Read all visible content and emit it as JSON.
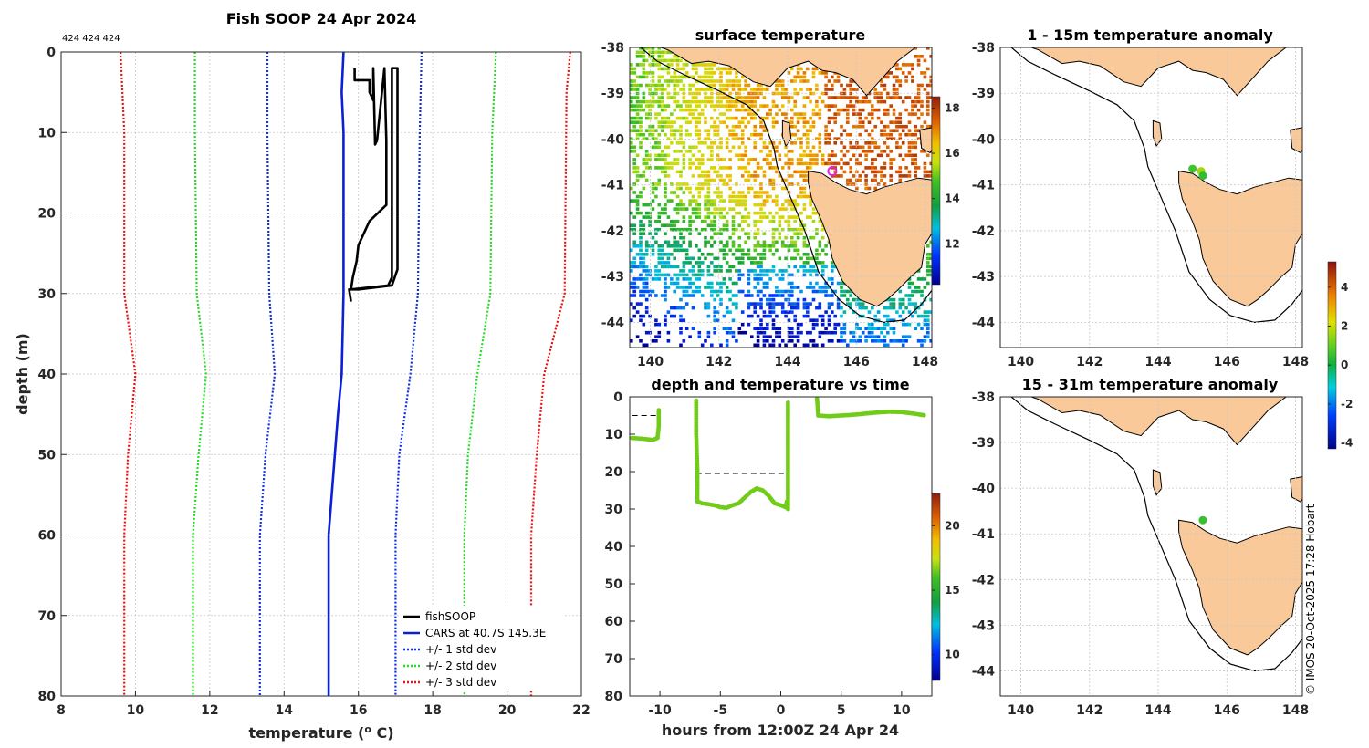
{
  "chart_data": [
    {
      "id": "profile",
      "type": "line",
      "title": "Fish SOOP 24 Apr 2024",
      "subtitle": "424 424 424",
      "xlabel": "temperature (",
      "xlabel_sup": "o",
      "xlabel_tail": " C)",
      "ylabel": "depth (m)",
      "xlim": [
        8,
        22
      ],
      "ylim": [
        0,
        80
      ],
      "y_reversed": true,
      "xticks": [
        8,
        10,
        12,
        14,
        16,
        18,
        20,
        22
      ],
      "yticks": [
        0,
        10,
        20,
        30,
        40,
        50,
        60,
        70,
        80
      ],
      "series": [
        {
          "name": "fishSOOP",
          "color": "#000000",
          "style": "solid",
          "points": [
            [
              15.9,
              2
            ],
            [
              15.9,
              3.5
            ],
            [
              16.3,
              3.5
            ],
            [
              16.3,
              5
            ],
            [
              16.4,
              6
            ],
            [
              16.4,
              2
            ],
            [
              16.45,
              11.5
            ],
            [
              16.5,
              11
            ],
            [
              16.7,
              2
            ],
            [
              16.75,
              11
            ],
            [
              16.75,
              19
            ],
            [
              16.3,
              21
            ],
            [
              16.0,
              24
            ],
            [
              15.95,
              26
            ],
            [
              15.85,
              28
            ],
            [
              15.8,
              29.5
            ],
            [
              16.8,
              29
            ],
            [
              16.9,
              28
            ],
            [
              16.9,
              2
            ],
            [
              17.05,
              2
            ],
            [
              17.05,
              27
            ],
            [
              16.9,
              29
            ],
            [
              16.0,
              29.5
            ],
            [
              15.75,
              29.5
            ],
            [
              15.8,
              31
            ]
          ]
        },
        {
          "name": "CARS at 40.7S 145.3E",
          "color": "#0a1fd6",
          "style": "solid",
          "points": [
            [
              15.6,
              0
            ],
            [
              15.55,
              5
            ],
            [
              15.6,
              10
            ],
            [
              15.6,
              20
            ],
            [
              15.6,
              30
            ],
            [
              15.55,
              40
            ],
            [
              15.45,
              45
            ],
            [
              15.2,
              60
            ],
            [
              15.2,
              70
            ],
            [
              15.2,
              80
            ]
          ]
        },
        {
          "name": "+/- 1 std dev",
          "color": "#1030e0",
          "style": "dotted",
          "points": [
            [
              13.55,
              0
            ],
            [
              13.55,
              10
            ],
            [
              13.6,
              30
            ],
            [
              13.75,
              40
            ],
            [
              13.5,
              50
            ],
            [
              13.35,
              60
            ],
            [
              13.35,
              80
            ]
          ]
        },
        {
          "name": "+/- 1 std dev (upper)",
          "color": "#1030e0",
          "style": "dotted",
          "points": [
            [
              17.7,
              0
            ],
            [
              17.65,
              10
            ],
            [
              17.6,
              30
            ],
            [
              17.4,
              40
            ],
            [
              17.1,
              50
            ],
            [
              17.0,
              60
            ],
            [
              17.0,
              80
            ]
          ]
        },
        {
          "name": "+/- 2 std dev",
          "color": "#22dd22",
          "style": "dotted",
          "points": [
            [
              11.6,
              0
            ],
            [
              11.6,
              10
            ],
            [
              11.65,
              30
            ],
            [
              11.9,
              40
            ],
            [
              11.7,
              50
            ],
            [
              11.55,
              60
            ],
            [
              11.55,
              80
            ]
          ]
        },
        {
          "name": "+/- 2 std dev (upper)",
          "color": "#22dd22",
          "style": "dotted",
          "points": [
            [
              19.7,
              0
            ],
            [
              19.6,
              10
            ],
            [
              19.55,
              30
            ],
            [
              19.2,
              40
            ],
            [
              18.95,
              50
            ],
            [
              18.85,
              60
            ],
            [
              18.85,
              80
            ]
          ]
        },
        {
          "name": "+/- 3 std dev",
          "color": "#ee1111",
          "style": "dotted",
          "points": [
            [
              9.6,
              0
            ],
            [
              9.7,
              10
            ],
            [
              9.7,
              30
            ],
            [
              10.0,
              40
            ],
            [
              9.8,
              50
            ],
            [
              9.7,
              60
            ],
            [
              9.7,
              80
            ]
          ]
        },
        {
          "name": "+/- 3 std dev (upper)",
          "color": "#ee1111",
          "style": "dotted",
          "points": [
            [
              21.7,
              0
            ],
            [
              21.6,
              5
            ],
            [
              21.55,
              30
            ],
            [
              21.0,
              40
            ],
            [
              20.8,
              50
            ],
            [
              20.65,
              60
            ],
            [
              20.65,
              80
            ]
          ]
        }
      ],
      "legend": [
        "fishSOOP",
        "CARS at 40.7S 145.3E",
        "+/- 1 std dev",
        "+/- 2 std dev",
        "+/- 3 std dev"
      ],
      "legend_position": "bottom-right"
    },
    {
      "id": "surface",
      "type": "heatmap",
      "title": "surface temperature",
      "xlim": [
        139.4,
        148.2
      ],
      "ylim": [
        -44.55,
        -38
      ],
      "xticks": [
        140,
        142,
        144,
        146,
        148
      ],
      "yticks": [
        -38,
        -39,
        -40,
        -41,
        -42,
        -43,
        -44
      ],
      "colorbar": {
        "min": 10.2,
        "max": 18.5,
        "ticks": [
          12,
          14,
          16,
          18
        ]
      },
      "marker": {
        "lon": 145.3,
        "lat": -40.7,
        "color": "#e020e0"
      }
    },
    {
      "id": "timeseries",
      "type": "scatter",
      "title": "depth and temperature vs time",
      "xlabel": "hours from 12:00Z 24 Apr 24",
      "xlim": [
        -12.5,
        12.5
      ],
      "ylim": [
        0,
        80
      ],
      "y_reversed": true,
      "xticks": [
        -10,
        -5,
        0,
        5,
        10
      ],
      "yticks": [
        0,
        10,
        20,
        30,
        40,
        50,
        60,
        70,
        80
      ],
      "colorbar": {
        "min": 8,
        "max": 22.5,
        "ticks": [
          10,
          15,
          20
        ]
      },
      "dashed_segments": [
        [
          [
            -12.3,
            5
          ],
          [
            -10.0,
            5
          ]
        ],
        [
          [
            -7.0,
            20.5
          ],
          [
            0.6,
            20.5
          ]
        ]
      ],
      "points_color_value": 16.5,
      "points": [
        [
          -12.3,
          11
        ],
        [
          -11.5,
          11.2
        ],
        [
          -10.6,
          11.5
        ],
        [
          -10.2,
          11
        ],
        [
          -10.1,
          8
        ],
        [
          -10.1,
          3
        ],
        [
          -7.0,
          1
        ],
        [
          -7.0,
          10
        ],
        [
          -6.9,
          20
        ],
        [
          -6.9,
          28
        ],
        [
          -6.5,
          28.5
        ],
        [
          -6.0,
          28.7
        ],
        [
          -5.5,
          29
        ],
        [
          -5.0,
          29.5
        ],
        [
          -4.5,
          29.7
        ],
        [
          -4.0,
          29
        ],
        [
          -3.5,
          28.5
        ],
        [
          -3.0,
          27
        ],
        [
          -2.5,
          25.5
        ],
        [
          -2.0,
          24.5
        ],
        [
          -1.5,
          25
        ],
        [
          -1.0,
          26.5
        ],
        [
          -0.5,
          28.5
        ],
        [
          0.0,
          29
        ],
        [
          0.4,
          29.5
        ],
        [
          0.5,
          28
        ],
        [
          0.6,
          30
        ],
        [
          0.6,
          20
        ],
        [
          0.6,
          8
        ],
        [
          0.6,
          1
        ],
        [
          3.0,
          0.5
        ],
        [
          3.1,
          5
        ],
        [
          4.0,
          5.2
        ],
        [
          5.0,
          5
        ],
        [
          6.0,
          4.8
        ],
        [
          7.0,
          4.5
        ],
        [
          8.0,
          4.2
        ],
        [
          9.0,
          4.0
        ],
        [
          10.0,
          4.1
        ],
        [
          11.0,
          4.5
        ],
        [
          12.0,
          5
        ]
      ]
    },
    {
      "id": "anom1",
      "type": "scatter",
      "title": "1 - 15m temperature anomaly",
      "xlim": [
        139.4,
        148.2
      ],
      "ylim": [
        -44.55,
        -38
      ],
      "xticks": [
        140,
        142,
        144,
        146,
        148
      ],
      "yticks": [
        -38,
        -39,
        -40,
        -41,
        -42,
        -43,
        -44
      ],
      "points": [
        [
          145.0,
          -40.65,
          0.6
        ],
        [
          145.25,
          -40.7,
          1.6
        ],
        [
          145.3,
          -40.8,
          0.4
        ]
      ]
    },
    {
      "id": "anom2",
      "type": "scatter",
      "title": "15 - 31m temperature anomaly",
      "xlim": [
        139.4,
        148.2
      ],
      "ylim": [
        -44.55,
        -38
      ],
      "xticks": [
        140,
        142,
        144,
        146,
        148
      ],
      "yticks": [
        -38,
        -39,
        -40,
        -41,
        -42,
        -43,
        -44
      ],
      "points": [
        [
          145.3,
          -40.7,
          0.5
        ]
      ]
    }
  ],
  "anomaly_colorbar": {
    "min": -4.3,
    "max": 5.3,
    "ticks": [
      -4,
      -2,
      0,
      2,
      4
    ]
  },
  "credit": "© IMOS 20-Oct-2025 17:28 Hobart",
  "colors": {
    "land": "#f9c99a",
    "coast": "#000000",
    "grid": "#cccccc"
  }
}
